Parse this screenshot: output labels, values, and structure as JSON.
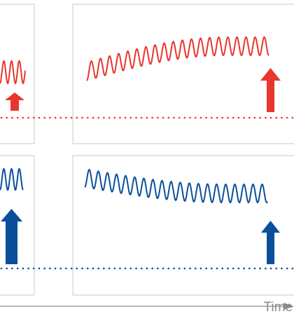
{
  "time_axis": {
    "label": "Time"
  },
  "colors": {
    "red": "#e8362d",
    "blue": "#0b4f9c",
    "panel_border": "#d3d3d3",
    "axis": "#8a8a8a"
  },
  "rows": [
    {
      "id": "red-row",
      "color": "#e8362d",
      "left_panel": {
        "signal_trend": "flat",
        "arrow": "small-up-arrow"
      },
      "right_panel": {
        "signal_trend": "rising",
        "arrow": "large-up-arrow"
      }
    },
    {
      "id": "blue-row",
      "color": "#0b4f9c",
      "left_panel": {
        "signal_trend": "flat",
        "arrow": "large-up-arrow"
      },
      "right_panel": {
        "signal_trend": "falling",
        "arrow": "large-up-arrow"
      }
    }
  ]
}
